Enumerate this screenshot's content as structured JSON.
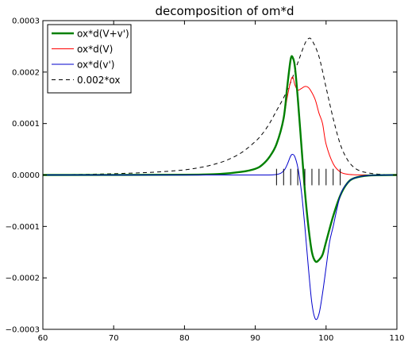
{
  "chart_data": {
    "type": "line",
    "title": "decomposition of om*d",
    "xlabel": "",
    "ylabel": "",
    "xlim": [
      60,
      110
    ],
    "ylim": [
      -0.0003,
      0.0003
    ],
    "grid": false,
    "legend_position": "upper-left",
    "x_ticks": [
      60,
      70,
      80,
      90,
      100,
      110
    ],
    "x_tick_labels": [
      "60",
      "70",
      "80",
      "90",
      "100",
      "110"
    ],
    "y_ticks": [
      -0.0003,
      -0.0002,
      -0.0001,
      0.0,
      0.0001,
      0.0002,
      0.0003
    ],
    "y_tick_labels": [
      "−0.0003",
      "−0.0002",
      "−0.0001",
      "0.0000",
      "0.0001",
      "0.0002",
      "0.0003"
    ],
    "series": [
      {
        "name": "ox*d(V+v')",
        "color": "#008000",
        "style": "solid",
        "weight": "thick",
        "x": [
          60,
          80,
          85,
          88,
          90,
          91,
          92,
          93,
          94,
          94.5,
          95,
          95.3,
          95.6,
          96,
          96.5,
          97,
          97.5,
          98,
          98.5,
          99,
          99.5,
          100,
          101,
          102,
          103,
          104,
          106,
          110
        ],
        "y": [
          0,
          5e-07,
          2e-06,
          6e-06,
          1.2e-05,
          2e-05,
          3.5e-05,
          6e-05,
          0.00011,
          0.00017,
          0.000225,
          0.000228,
          0.00021,
          0.00015,
          6e-05,
          -3e-05,
          -0.0001,
          -0.00015,
          -0.000168,
          -0.000165,
          -0.000155,
          -0.00013,
          -8e-05,
          -4e-05,
          -1.6e-05,
          -6e-06,
          -1e-06,
          0
        ]
      },
      {
        "name": "ox*d(V)",
        "color": "#ff0000",
        "style": "solid",
        "weight": "thin",
        "x": [
          60,
          80,
          85,
          88,
          90,
          91,
          92,
          93,
          94,
          94.5,
          95,
          95.3,
          95.6,
          96,
          96.5,
          97,
          97.5,
          98,
          98.5,
          99,
          99.5,
          100,
          101,
          102,
          103,
          104,
          106,
          110
        ],
        "y": [
          0,
          5e-07,
          2e-06,
          6e-06,
          1.2e-05,
          2e-05,
          3.5e-05,
          6e-05,
          0.00011,
          0.00015,
          0.000182,
          0.00019,
          0.000175,
          0.000165,
          0.000168,
          0.000172,
          0.00017,
          0.00016,
          0.000145,
          0.00012,
          0.0001,
          6e-05,
          2.2e-05,
          6e-06,
          1.5e-06,
          4e-07,
          1e-07,
          0
        ]
      },
      {
        "name": "ox*d(v')",
        "color": "#0000cc",
        "style": "solid",
        "weight": "thin",
        "x": [
          60,
          80,
          90,
          93,
          94,
          94.5,
          95,
          95.3,
          95.6,
          96,
          96.5,
          97,
          97.5,
          98,
          98.5,
          99,
          99.5,
          100,
          100.5,
          101,
          102,
          103,
          104,
          106,
          110
        ],
        "y": [
          0,
          0,
          0,
          1e-06,
          8e-06,
          2e-05,
          3.7e-05,
          4e-05,
          3.5e-05,
          1.5e-05,
          -3e-05,
          -0.0001,
          -0.00018,
          -0.00025,
          -0.00028,
          -0.00027,
          -0.00023,
          -0.00018,
          -0.00013,
          -0.0001,
          -4e-05,
          -1.6e-05,
          -6e-06,
          -1e-06,
          0
        ]
      },
      {
        "name": "0.002*ox",
        "color": "#000000",
        "style": "dashed",
        "weight": "thin",
        "x": [
          60,
          65,
          70,
          75,
          78,
          80,
          82,
          84,
          86,
          88,
          90,
          91,
          92,
          93,
          94,
          95,
          96,
          97,
          97.5,
          98,
          99,
          100,
          101,
          102,
          103,
          104,
          105,
          106,
          107,
          108,
          109,
          110
        ],
        "y": [
          5e-07,
          1e-06,
          2.5e-06,
          5e-06,
          7.5e-06,
          1e-05,
          1.4e-05,
          2e-05,
          2.9e-05,
          4.3e-05,
          6.5e-05,
          8e-05,
          0.0001,
          0.000125,
          0.00015,
          0.00018,
          0.000218,
          0.000255,
          0.000265,
          0.000262,
          0.00023,
          0.00017,
          0.00011,
          6e-05,
          3e-05,
          1.4e-05,
          7e-06,
          4e-06,
          2e-06,
          1e-06,
          5e-07,
          2e-07
        ]
      }
    ],
    "markers": {
      "style": "vertical ticks",
      "color": "#000000",
      "x": [
        93,
        94,
        95,
        96,
        97,
        98,
        99,
        100,
        101,
        102
      ],
      "y_from": -2e-05,
      "y_to": 1.2e-05
    }
  }
}
